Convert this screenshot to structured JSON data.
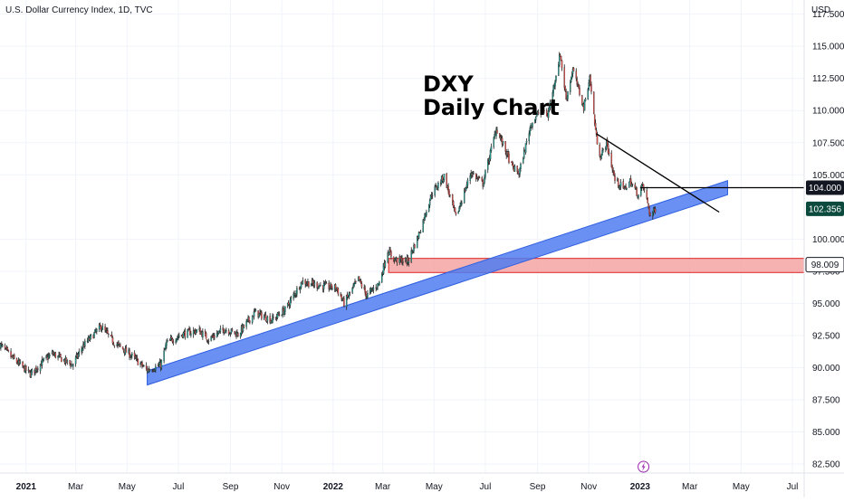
{
  "header": {
    "symbol_text": "U.S. Dollar Currency Index, 1D, TVC",
    "currency_label": "USD"
  },
  "annotation": {
    "line1": "DXY",
    "line2": "Daily Chart"
  },
  "colors": {
    "up": "#26a69a",
    "down": "#ef5350",
    "candle": "#222222",
    "trend_band": "#4f7cf0",
    "zone_fill": "#f4a3a3",
    "zone_border": "#e02424",
    "grid": "#f0f3fa",
    "last_price_bg": "#0b4a3c",
    "flag_bg": "#131722",
    "event_icon": "#9c27b0"
  },
  "chart_data": {
    "type": "candlestick",
    "title": "DXY Daily Chart",
    "symbol": "U.S. Dollar Currency Index, 1D, TVC",
    "x_axis_ticks": [
      "2021",
      "Mar",
      "May",
      "Jul",
      "Sep",
      "Nov",
      "2022",
      "Mar",
      "May",
      "Jul",
      "Sep",
      "Nov",
      "2023",
      "Mar",
      "May",
      "Jul"
    ],
    "x_range": [
      "2020-12-01",
      "2023-07-15"
    ],
    "y_axis_ticks": [
      "117.500",
      "115.000",
      "112.500",
      "110.000",
      "107.500",
      "105.000",
      "100.000",
      "97.500",
      "95.000",
      "92.500",
      "90.000",
      "87.500",
      "85.000",
      "82.500"
    ],
    "y_range": [
      81.8,
      118.6
    ],
    "last_price": 102.356,
    "price_labels": [
      {
        "value": 104.0,
        "label": "104.000"
      },
      {
        "value": 98.009,
        "label": "98.009"
      },
      {
        "value": 102.356,
        "label": "102.356"
      }
    ],
    "series_path": [
      [
        "2020-12-01",
        91.8
      ],
      [
        "2020-12-15",
        90.8
      ],
      [
        "2021-01-06",
        89.5
      ],
      [
        "2021-01-20",
        90.4
      ],
      [
        "2021-02-01",
        91.1
      ],
      [
        "2021-02-25",
        90.2
      ],
      [
        "2021-03-10",
        91.7
      ],
      [
        "2021-03-31",
        93.2
      ],
      [
        "2021-04-15",
        92.0
      ],
      [
        "2021-05-05",
        91.0
      ],
      [
        "2021-05-25",
        89.8
      ],
      [
        "2021-06-10",
        90.2
      ],
      [
        "2021-06-17",
        91.9
      ],
      [
        "2021-07-05",
        92.6
      ],
      [
        "2021-07-25",
        92.9
      ],
      [
        "2021-08-06",
        92.2
      ],
      [
        "2021-08-25",
        93.0
      ],
      [
        "2021-09-10",
        92.6
      ],
      [
        "2021-09-30",
        94.3
      ],
      [
        "2021-10-20",
        93.7
      ],
      [
        "2021-11-05",
        94.5
      ],
      [
        "2021-11-25",
        96.7
      ],
      [
        "2021-12-15",
        96.4
      ],
      [
        "2022-01-05",
        96.2
      ],
      [
        "2022-01-14",
        95.0
      ],
      [
        "2022-01-31",
        96.9
      ],
      [
        "2022-02-10",
        95.6
      ],
      [
        "2022-02-25",
        96.6
      ],
      [
        "2022-03-07",
        99.1
      ],
      [
        "2022-03-15",
        98.4
      ],
      [
        "2022-03-31",
        98.3
      ],
      [
        "2022-04-12",
        100.2
      ],
      [
        "2022-04-28",
        103.5
      ],
      [
        "2022-05-13",
        104.9
      ],
      [
        "2022-05-27",
        101.7
      ],
      [
        "2022-06-14",
        105.2
      ],
      [
        "2022-06-28",
        104.3
      ],
      [
        "2022-07-14",
        108.6
      ],
      [
        "2022-08-02",
        105.6
      ],
      [
        "2022-08-10",
        105.1
      ],
      [
        "2022-08-24",
        108.9
      ],
      [
        "2022-09-06",
        110.2
      ],
      [
        "2022-09-13",
        109.6
      ],
      [
        "2022-09-28",
        114.4
      ],
      [
        "2022-10-05",
        110.9
      ],
      [
        "2022-10-13",
        113.2
      ],
      [
        "2022-10-26",
        110.2
      ],
      [
        "2022-11-02",
        112.6
      ],
      [
        "2022-11-10",
        107.9
      ],
      [
        "2022-11-15",
        106.4
      ],
      [
        "2022-11-22",
        107.5
      ],
      [
        "2022-12-02",
        104.6
      ],
      [
        "2022-12-13",
        103.9
      ],
      [
        "2022-12-20",
        104.5
      ],
      [
        "2022-12-30",
        103.4
      ],
      [
        "2023-01-04",
        104.2
      ],
      [
        "2023-01-10",
        102.8
      ],
      [
        "2023-01-13",
        101.8
      ],
      [
        "2023-01-20",
        102.4
      ]
    ],
    "drawings": {
      "trend_band": {
        "start": [
          "2021-05-25",
          89.2
        ],
        "end": [
          "2023-04-15",
          104.0
        ],
        "thickness": 1.1
      },
      "support_zone": {
        "x_start": "2022-03-08",
        "x_end": "2023-07-15",
        "y_low": 97.4,
        "y_high": 98.5
      },
      "downtrend_line": {
        "start": [
          "2022-11-10",
          108.2
        ],
        "end": [
          "2023-04-05",
          102.1
        ]
      },
      "resistance_ray": {
        "start": [
          "2023-01-01",
          104.0
        ],
        "end": [
          "2023-07-15",
          104.0
        ]
      }
    }
  }
}
